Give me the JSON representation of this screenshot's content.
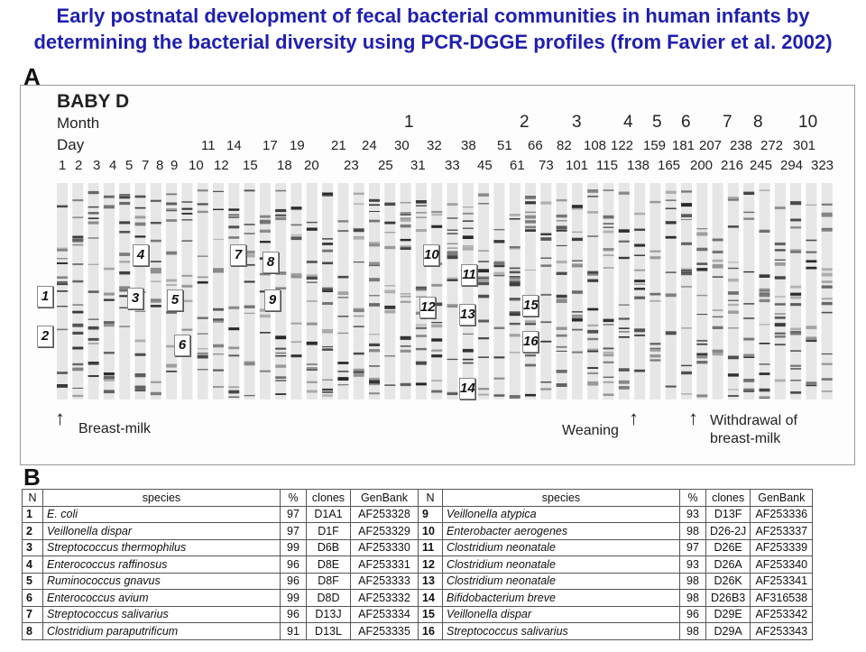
{
  "title": "Early postnatal development of fecal bacterial communities in human infants by determining the bacterial diversity using PCR-DGGE profiles (from Favier et al. 2002)",
  "panel_a": {
    "letter": "A",
    "subject": "BABY D",
    "month_label": "Month",
    "day_label": "Day",
    "months": [
      "1",
      "2",
      "3",
      "4",
      "5",
      "6",
      "7",
      "8",
      "10"
    ],
    "days_upper": [
      "11",
      "14",
      "17",
      "19",
      "21",
      "24",
      "30",
      "32",
      "38",
      "51",
      "66",
      "82",
      "108",
      "122",
      "159",
      "181",
      "207",
      "238",
      "272",
      "301"
    ],
    "days_lower": [
      "1",
      "2",
      "3",
      "4",
      "5",
      "7",
      "8",
      "9",
      "10",
      "12",
      "15",
      "18",
      "20",
      "23",
      "25",
      "31",
      "33",
      "45",
      "61",
      "73",
      "101",
      "115",
      "138",
      "165",
      "200",
      "216",
      "245",
      "294",
      "323"
    ],
    "markers": [
      "1",
      "2",
      "3",
      "4",
      "5",
      "6",
      "7",
      "8",
      "9",
      "10",
      "11",
      "12",
      "13",
      "14",
      "15",
      "16"
    ],
    "annotations": {
      "breast_milk": "Breast-milk",
      "weaning": "Weaning",
      "withdrawal": "Withdrawal of breast-milk"
    }
  },
  "panel_b": {
    "letter": "B",
    "headers": [
      "N",
      "species",
      "%",
      "clones",
      "GenBank",
      "N",
      "species",
      "%",
      "clones",
      "GenBank"
    ],
    "rows": [
      [
        "1",
        "E. coli",
        "97",
        "D1A1",
        "AF253328",
        "9",
        "Veillonella atypica",
        "93",
        "D13F",
        "AF253336"
      ],
      [
        "2",
        "Veillonella dispar",
        "97",
        "D1F",
        "AF253329",
        "10",
        "Enterobacter aerogenes",
        "98",
        "D26-2J",
        "AF253337"
      ],
      [
        "3",
        "Streptococcus thermophilus",
        "99",
        "D6B",
        "AF253330",
        "11",
        "Clostridium neonatale",
        "97",
        "D26E",
        "AF253339"
      ],
      [
        "4",
        "Enterococcus raffinosus",
        "96",
        "D8E",
        "AF253331",
        "12",
        "Clostridium neonatale",
        "93",
        "D26A",
        "AF253340"
      ],
      [
        "5",
        "Ruminococcus gnavus",
        "96",
        "D8F",
        "AF253333",
        "13",
        "Clostridium neonatale",
        "98",
        "D26K",
        "AF253341"
      ],
      [
        "6",
        "Enterococcus avium",
        "99",
        "D8D",
        "AF253332",
        "14",
        "Bifidobacterium breve",
        "98",
        "D26B3",
        "AF316538"
      ],
      [
        "7",
        "Streptococcus salivarius",
        "96",
        "D13J",
        "AF253334",
        "15",
        "Veillonella dispar",
        "96",
        "D29E",
        "AF253342"
      ],
      [
        "8",
        "Clostridium paraputrificum",
        "91",
        "D13L",
        "AF253335",
        "16",
        "Streptococcus salivarius",
        "98",
        "D29A",
        "AF253343"
      ]
    ]
  }
}
